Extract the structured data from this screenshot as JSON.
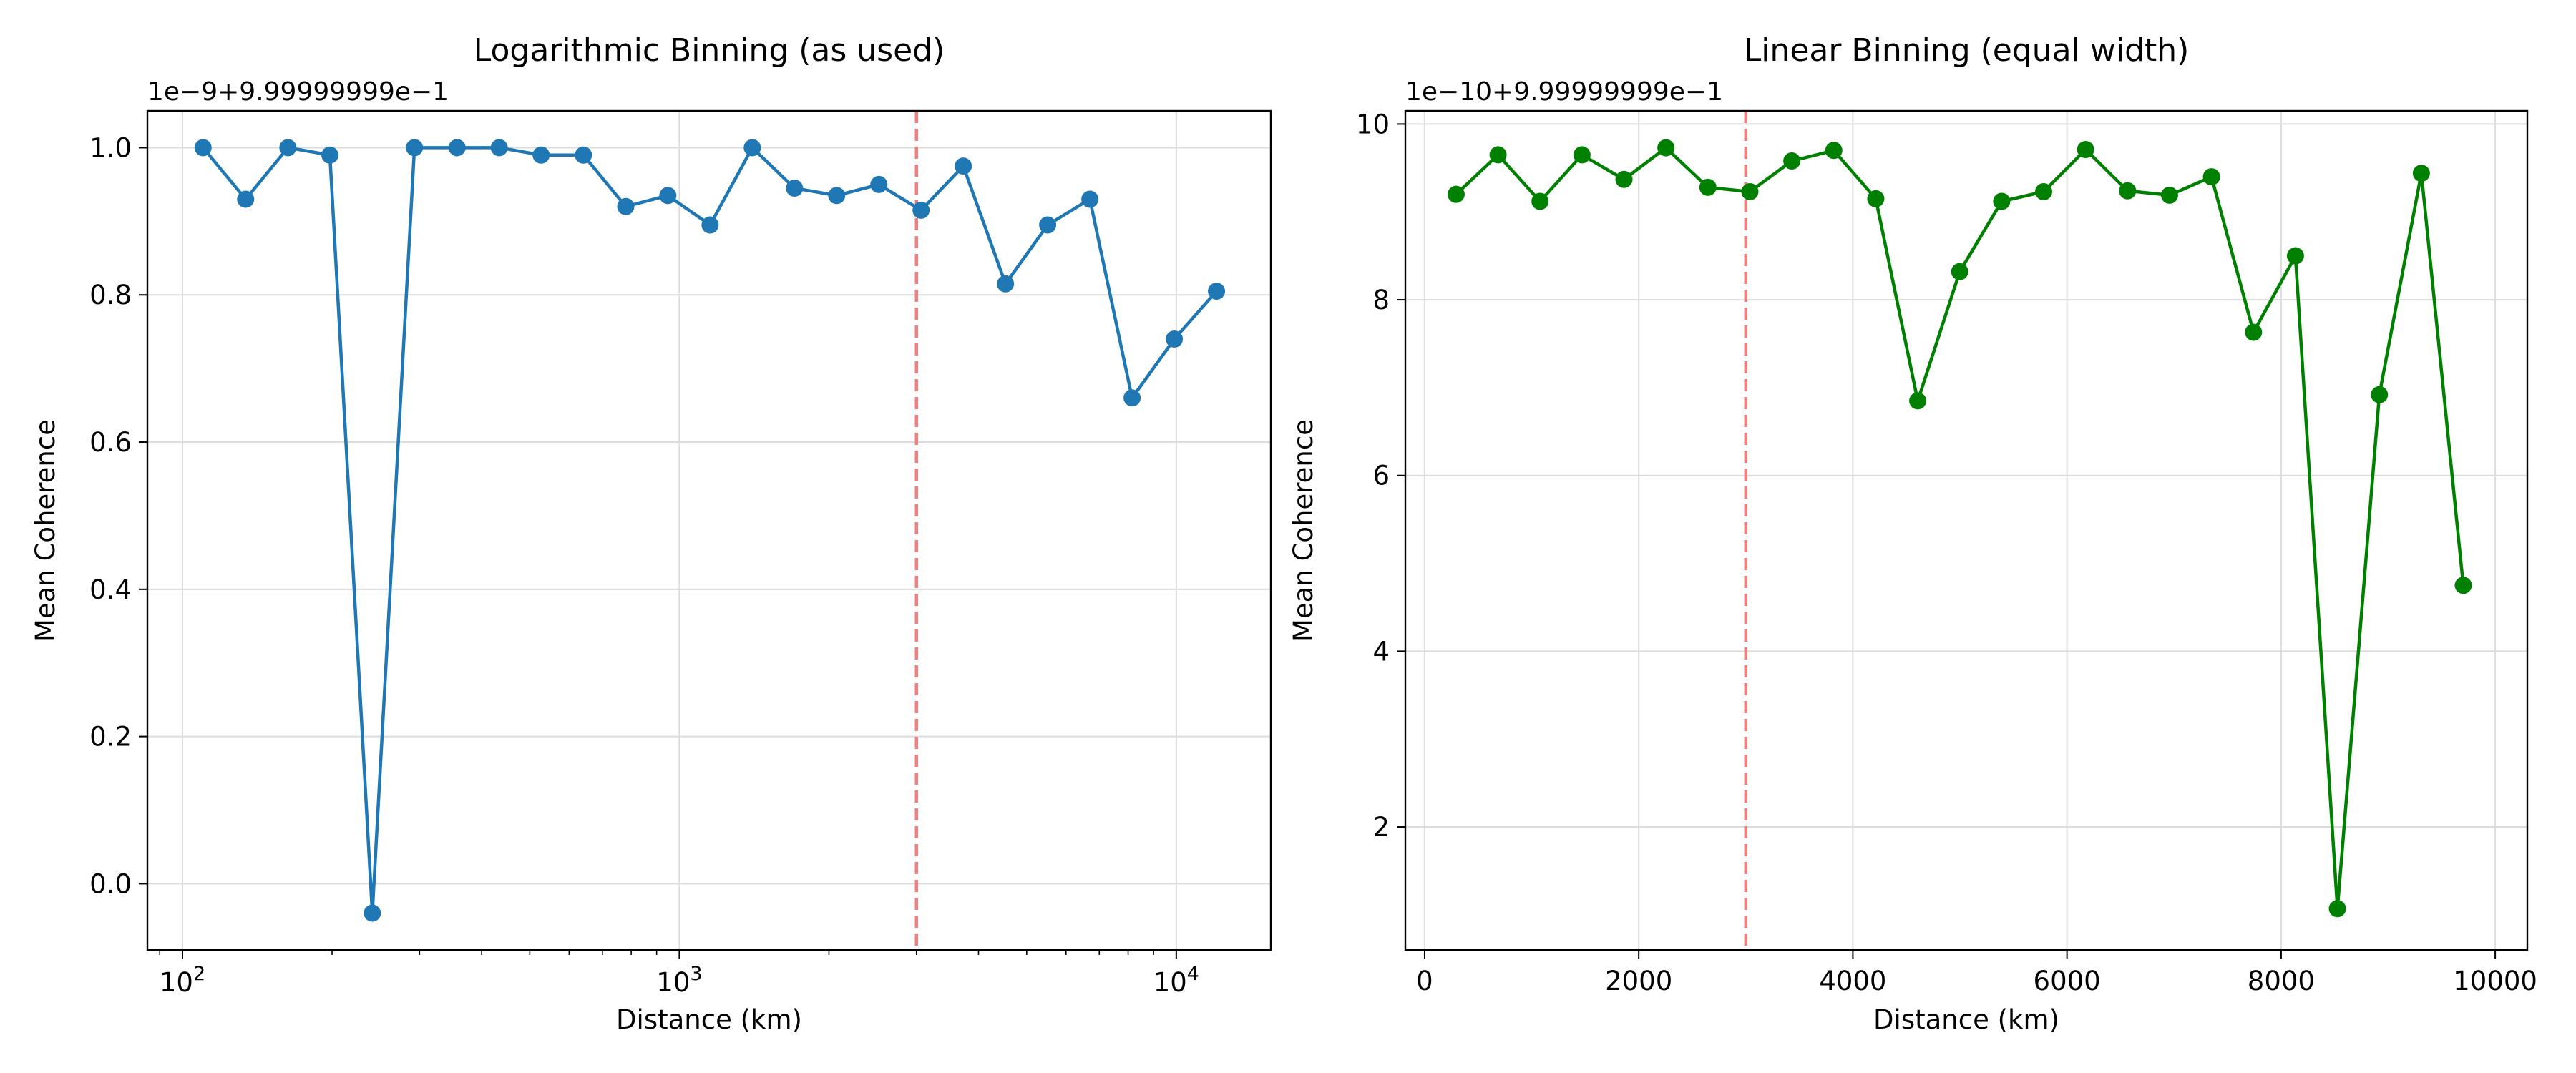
{
  "chart_data": [
    {
      "type": "line",
      "title": "Logarithmic Binning (as used)",
      "xlabel": "Distance (km)",
      "ylabel": "Mean Coherence",
      "offset_text": "1e−9+9.99999999e−1",
      "xscale": "log",
      "xlim": [
        85,
        15500
      ],
      "ylim": [
        -0.09,
        1.05
      ],
      "yticks": [
        0.0,
        0.2,
        0.4,
        0.6,
        0.8,
        1.0
      ],
      "ytick_labels": [
        "0.0",
        "0.2",
        "0.4",
        "0.6",
        "0.8",
        "1.0"
      ],
      "xticks": [
        {
          "value": 100,
          "base": "10",
          "exp": "2"
        },
        {
          "value": 1000,
          "base": "10",
          "exp": "3"
        },
        {
          "value": 10000,
          "base": "10",
          "exp": "4"
        }
      ],
      "grid": true,
      "vline": {
        "x": 3000,
        "color": "#f08080"
      },
      "series": [
        {
          "color": "#1f77b4",
          "x": [
            110,
            134,
            163,
            198,
            241,
            293,
            357,
            434,
            527,
            641,
            780,
            948,
            1153,
            1402,
            1705,
            2073,
            2521,
            3065,
            3727,
            4532,
            5511,
            6702,
            8149,
            9910,
            12050
          ],
          "y": [
            1.0,
            0.93,
            1.0,
            0.99,
            -0.04,
            1.0,
            1.0,
            1.0,
            0.99,
            0.99,
            0.92,
            0.935,
            0.895,
            1.0,
            0.945,
            0.935,
            0.95,
            0.915,
            0.975,
            0.815,
            0.895,
            0.93,
            0.66,
            0.74,
            0.805
          ]
        }
      ]
    },
    {
      "type": "line",
      "title": "Linear Binning (equal width)",
      "xlabel": "Distance (km)",
      "ylabel": "Mean Coherence",
      "offset_text": "1e−10+9.99999999e−1",
      "xscale": "linear",
      "xlim": [
        -180,
        10300
      ],
      "ylim": [
        0.6,
        10.15
      ],
      "yticks": [
        2,
        4,
        6,
        8,
        10
      ],
      "ytick_labels": [
        "2",
        "4",
        "6",
        "8",
        "10"
      ],
      "xticks": [
        {
          "value": 0,
          "label": "0"
        },
        {
          "value": 2000,
          "label": "2000"
        },
        {
          "value": 4000,
          "label": "4000"
        },
        {
          "value": 6000,
          "label": "6000"
        },
        {
          "value": 8000,
          "label": "8000"
        },
        {
          "value": 10000,
          "label": "10000"
        }
      ],
      "grid": true,
      "vline": {
        "x": 3000,
        "color": "#f08080"
      },
      "series": [
        {
          "color": "#008000",
          "x": [
            294,
            686,
            1078,
            1470,
            1862,
            2254,
            2646,
            3038,
            3430,
            3822,
            4214,
            4606,
            4998,
            5390,
            5782,
            6174,
            6566,
            6958,
            7350,
            7742,
            8134,
            8526,
            8918,
            9310,
            9702
          ],
          "y": [
            9.2,
            9.65,
            9.12,
            9.65,
            9.37,
            9.73,
            9.28,
            9.23,
            9.58,
            9.7,
            9.15,
            6.85,
            8.32,
            9.12,
            9.23,
            9.71,
            9.24,
            9.19,
            9.4,
            7.63,
            8.5,
            1.07,
            6.92,
            9.44,
            4.75
          ]
        }
      ]
    }
  ]
}
